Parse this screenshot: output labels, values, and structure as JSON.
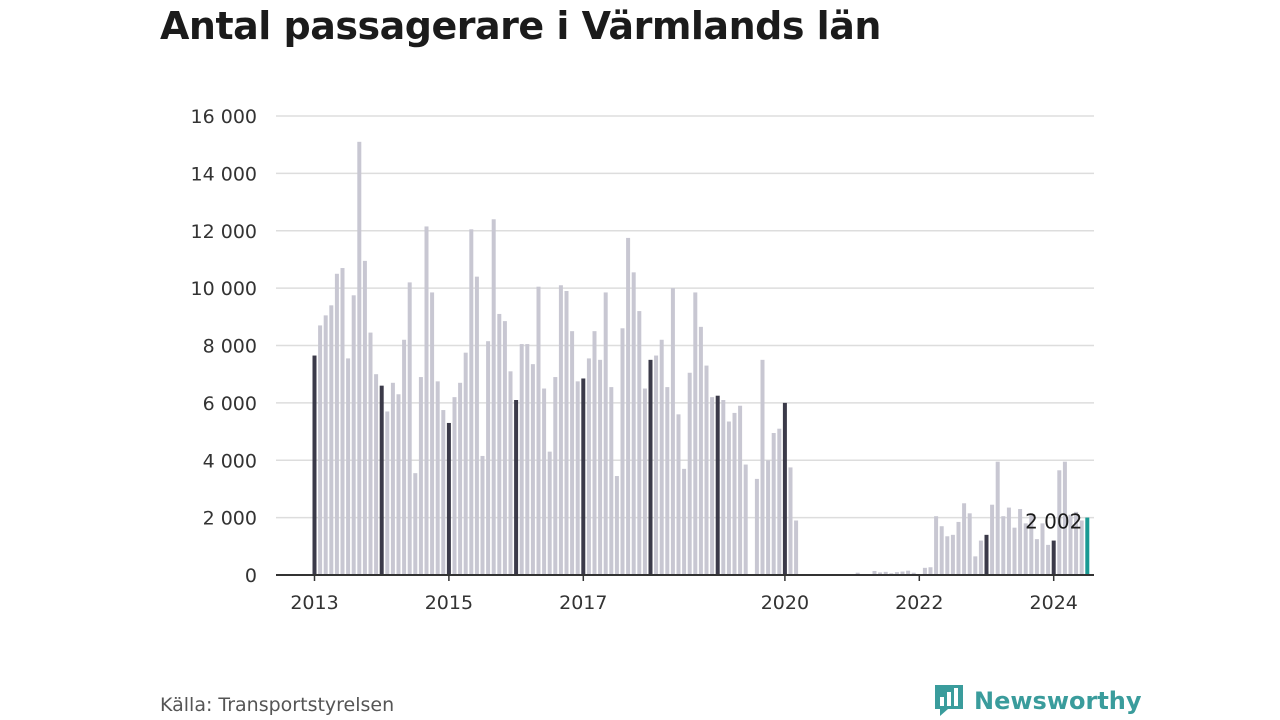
{
  "title": "Antal passagerare i Värmlands län",
  "source": "Källa: Transportstyrelsen",
  "brand": "Newsworthy",
  "colors": {
    "bar": "#c8c7d2",
    "january": "#3b3a49",
    "latest": "#1a9a93",
    "grid": "#dddddd",
    "axis": "#333333",
    "brand": "#3a9c9c"
  },
  "chart_data": {
    "type": "bar",
    "title": "Antal passagerare i Värmlands län",
    "xlabel": "",
    "ylabel": "",
    "ylim": [
      0,
      16000
    ],
    "yticks": [
      0,
      2000,
      4000,
      6000,
      8000,
      10000,
      12000,
      14000,
      16000
    ],
    "ytick_labels": [
      "0",
      "2 000",
      "4 000",
      "6 000",
      "8 000",
      "10 000",
      "12 000",
      "14 000",
      "16 000"
    ],
    "xtick_labels": [
      {
        "label": "2013",
        "index": 0
      },
      {
        "label": "2015",
        "index": 24
      },
      {
        "label": "2017",
        "index": 48
      },
      {
        "label": "2020",
        "index": 84
      },
      {
        "label": "2022",
        "index": 108
      },
      {
        "label": "2024",
        "index": 132
      }
    ],
    "start": "2013-01",
    "frequency": "monthly",
    "grid": true,
    "highlight": "January bars dark, latest bar teal",
    "annotation": {
      "text": "2 002",
      "index": 132
    },
    "values": [
      7650,
      8700,
      9050,
      9400,
      10500,
      10700,
      7550,
      9750,
      15100,
      10950,
      8450,
      7000,
      6600,
      5700,
      6700,
      6300,
      8200,
      10200,
      3550,
      6900,
      12150,
      9850,
      6750,
      5750,
      5300,
      6200,
      6700,
      7750,
      12050,
      10400,
      4150,
      8150,
      12400,
      9100,
      8850,
      7100,
      6100,
      8050,
      8050,
      7350,
      10050,
      6500,
      4300,
      6900,
      10100,
      9900,
      8500,
      6750,
      6850,
      7550,
      8500,
      7500,
      9850,
      6550,
      3450,
      8600,
      11750,
      10550,
      9200,
      6500,
      7500,
      7650,
      8200,
      6550,
      10000,
      5600,
      3700,
      7050,
      9850,
      8650,
      7300,
      6200,
      6250,
      6100,
      5350,
      5650,
      5900,
      3850,
      0,
      3350,
      7500,
      4000,
      4950,
      5100,
      6000,
      3750,
      1900,
      0,
      0,
      0,
      0,
      0,
      0,
      0,
      0,
      0,
      0,
      80,
      0,
      0,
      140,
      90,
      110,
      60,
      100,
      120,
      150,
      80,
      0,
      250,
      270,
      2050,
      1700,
      1350,
      1400,
      1850,
      2500,
      2150,
      650,
      1200,
      1400,
      2450,
      3950,
      2050,
      2350,
      1650,
      2300,
      1800,
      2100,
      1250,
      1800,
      1050,
      1200,
      3650,
      3950,
      2100,
      2200,
      1900,
      2002
    ]
  }
}
